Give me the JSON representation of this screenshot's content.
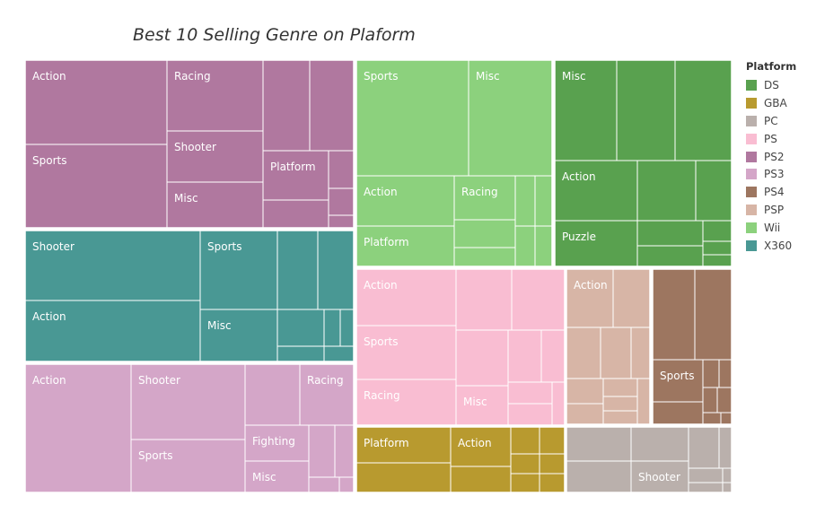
{
  "chart_data": {
    "type": "treemap",
    "title": "Best 10 Selling Genre on Plaform",
    "legend": {
      "title": "Platform",
      "placement": "right",
      "entries": [
        {
          "name": "DS",
          "color": "#59a14f"
        },
        {
          "name": "GBA",
          "color": "#b89a2f"
        },
        {
          "name": "PC",
          "color": "#bab0ac"
        },
        {
          "name": "PS",
          "color": "#f9bdd2"
        },
        {
          "name": "PS2",
          "color": "#b0789f"
        },
        {
          "name": "PS3",
          "color": "#d4a6c8"
        },
        {
          "name": "PS4",
          "color": "#9d7660"
        },
        {
          "name": "PSP",
          "color": "#d7b5a6"
        },
        {
          "name": "Wii",
          "color": "#8cd17d"
        },
        {
          "name": "X360",
          "color": "#499894"
        }
      ]
    },
    "platforms": [
      {
        "platform": "PS2",
        "color": "#b0789f",
        "labels": [
          "Action",
          "Racing",
          "Sports",
          "Shooter",
          "Misc",
          "Platform"
        ]
      },
      {
        "platform": "X360",
        "color": "#499894",
        "labels": [
          "Shooter",
          "Sports",
          "Action",
          "Misc"
        ]
      },
      {
        "platform": "PS3",
        "color": "#d4a6c8",
        "labels": [
          "Action",
          "Shooter",
          "Racing",
          "Fighting",
          "Sports",
          "Misc"
        ]
      },
      {
        "platform": "Wii",
        "color": "#8cd17d",
        "labels": [
          "Sports",
          "Misc",
          "Action",
          "Racing",
          "Platform"
        ]
      },
      {
        "platform": "DS",
        "color": "#59a14f",
        "labels": [
          "Misc",
          "Action",
          "Puzzle"
        ]
      },
      {
        "platform": "PS",
        "color": "#f9bdd2",
        "labels": [
          "Action",
          "Sports",
          "Racing",
          "Misc"
        ]
      },
      {
        "platform": "PSP",
        "color": "#d7b5a6",
        "labels": [
          "Action"
        ]
      },
      {
        "platform": "PS4",
        "color": "#9d7660",
        "labels": [
          "Sports"
        ]
      },
      {
        "platform": "GBA",
        "color": "#b89a2f",
        "labels": [
          "Platform",
          "Action"
        ]
      },
      {
        "platform": "PC",
        "color": "#bab0ac",
        "labels": [
          "Shooter"
        ]
      }
    ]
  }
}
